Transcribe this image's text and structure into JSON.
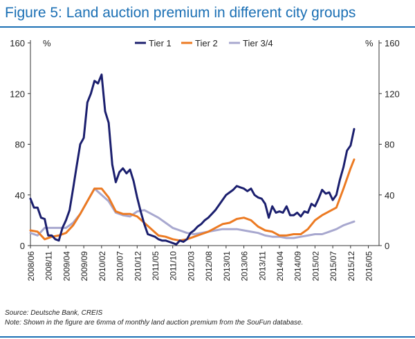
{
  "title": "Figure 5: Land auction premium in different city groups",
  "notes": {
    "source": "Source: Deutsche Bank, CREIS",
    "note": "Note: Shown in the figure are 6mma of monthly land auction premium from the SouFun database."
  },
  "colors": {
    "title": "#1a6fb4",
    "tier1": "#1b1f6e",
    "tier2": "#ec7a22",
    "tier3": "#a8a8cf"
  },
  "chart_data": {
    "type": "line",
    "title": "Figure 5: Land auction premium in different city groups",
    "start_month": "2008-06",
    "end_month": "2016-08",
    "ylim": [
      0,
      160
    ],
    "yticks": [
      0,
      40,
      80,
      120,
      160
    ],
    "left_unit": "%",
    "right_unit": "%",
    "grid": false,
    "legend_position": "top-center",
    "x_tick_labels": [
      "2008/06",
      "2008/11",
      "2009/04",
      "2009/09",
      "2010/02",
      "2010/07",
      "2010/12",
      "2011/05",
      "2011/10",
      "2012/03",
      "2012/08",
      "2013/01",
      "2013/06",
      "2013/11",
      "2014/04",
      "2014/09",
      "2015/02",
      "2015/07",
      "2015/12",
      "2016/05"
    ],
    "series": [
      {
        "name": "Tier 1",
        "color": "#1b1f6e",
        "points": [
          [
            0,
            37
          ],
          [
            1,
            30
          ],
          [
            2,
            30
          ],
          [
            3,
            22
          ],
          [
            4,
            21
          ],
          [
            5,
            8
          ],
          [
            6,
            8
          ],
          [
            7,
            5
          ],
          [
            8,
            4
          ],
          [
            9,
            14
          ],
          [
            10,
            20
          ],
          [
            11,
            28
          ],
          [
            12,
            45
          ],
          [
            13,
            63
          ],
          [
            14,
            80
          ],
          [
            15,
            85
          ],
          [
            16,
            113
          ],
          [
            17,
            120
          ],
          [
            18,
            130
          ],
          [
            19,
            128
          ],
          [
            20,
            135
          ],
          [
            21,
            106
          ],
          [
            22,
            97
          ],
          [
            23,
            64
          ],
          [
            24,
            50
          ],
          [
            25,
            58
          ],
          [
            26,
            61
          ],
          [
            27,
            57
          ],
          [
            28,
            60
          ],
          [
            29,
            51
          ],
          [
            30,
            38
          ],
          [
            31,
            27
          ],
          [
            32,
            17
          ],
          [
            33,
            9
          ],
          [
            34,
            8
          ],
          [
            35,
            7
          ],
          [
            36,
            5
          ],
          [
            37,
            4
          ],
          [
            38,
            4
          ],
          [
            39,
            3
          ],
          [
            40,
            2
          ],
          [
            41,
            1
          ],
          [
            42,
            4
          ],
          [
            43,
            3
          ],
          [
            44,
            5
          ],
          [
            45,
            10
          ],
          [
            46,
            12
          ],
          [
            47,
            15
          ],
          [
            48,
            17
          ],
          [
            49,
            20
          ],
          [
            50,
            22
          ],
          [
            51,
            25
          ],
          [
            52,
            28
          ],
          [
            53,
            32
          ],
          [
            54,
            36
          ],
          [
            55,
            40
          ],
          [
            56,
            42
          ],
          [
            57,
            44
          ],
          [
            58,
            47
          ],
          [
            59,
            46
          ],
          [
            60,
            45
          ],
          [
            61,
            43
          ],
          [
            62,
            45
          ],
          [
            63,
            40
          ],
          [
            64,
            38
          ],
          [
            65,
            37
          ],
          [
            66,
            33
          ],
          [
            67,
            22
          ],
          [
            68,
            31
          ],
          [
            69,
            26
          ],
          [
            70,
            27
          ],
          [
            71,
            26
          ],
          [
            72,
            31
          ],
          [
            73,
            24
          ],
          [
            74,
            24
          ],
          [
            75,
            26
          ],
          [
            76,
            23
          ],
          [
            77,
            27
          ],
          [
            78,
            26
          ],
          [
            79,
            33
          ],
          [
            80,
            31
          ],
          [
            81,
            37
          ],
          [
            82,
            44
          ],
          [
            83,
            41
          ],
          [
            84,
            42
          ],
          [
            85,
            36
          ],
          [
            86,
            40
          ],
          [
            87,
            52
          ],
          [
            88,
            62
          ],
          [
            89,
            75
          ],
          [
            90,
            79
          ],
          [
            91,
            92
          ]
        ]
      },
      {
        "name": "Tier 2",
        "color": "#ec7a22",
        "points": [
          [
            0,
            12
          ],
          [
            2,
            11
          ],
          [
            4,
            5
          ],
          [
            6,
            7
          ],
          [
            8,
            8
          ],
          [
            10,
            10
          ],
          [
            12,
            16
          ],
          [
            14,
            25
          ],
          [
            16,
            35
          ],
          [
            18,
            45
          ],
          [
            20,
            45
          ],
          [
            22,
            38
          ],
          [
            24,
            27
          ],
          [
            26,
            25
          ],
          [
            28,
            25
          ],
          [
            30,
            23
          ],
          [
            32,
            18
          ],
          [
            34,
            13
          ],
          [
            36,
            8
          ],
          [
            38,
            7
          ],
          [
            40,
            5
          ],
          [
            42,
            4
          ],
          [
            44,
            5
          ],
          [
            46,
            7
          ],
          [
            48,
            9
          ],
          [
            50,
            11
          ],
          [
            52,
            14
          ],
          [
            54,
            17
          ],
          [
            56,
            18
          ],
          [
            58,
            21
          ],
          [
            60,
            22
          ],
          [
            62,
            20
          ],
          [
            64,
            15
          ],
          [
            66,
            12
          ],
          [
            68,
            11
          ],
          [
            70,
            8
          ],
          [
            72,
            8
          ],
          [
            74,
            9
          ],
          [
            76,
            9
          ],
          [
            78,
            13
          ],
          [
            80,
            20
          ],
          [
            82,
            24
          ],
          [
            84,
            27
          ],
          [
            86,
            30
          ],
          [
            88,
            45
          ],
          [
            90,
            61
          ],
          [
            91,
            68
          ]
        ]
      },
      {
        "name": "Tier 3/4",
        "color": "#a8a8cf",
        "points": [
          [
            0,
            10
          ],
          [
            2,
            8
          ],
          [
            4,
            14
          ],
          [
            6,
            14
          ],
          [
            8,
            14
          ],
          [
            10,
            14
          ],
          [
            12,
            18
          ],
          [
            14,
            25
          ],
          [
            16,
            35
          ],
          [
            18,
            45
          ],
          [
            20,
            40
          ],
          [
            22,
            35
          ],
          [
            24,
            26
          ],
          [
            26,
            24
          ],
          [
            28,
            23
          ],
          [
            30,
            27
          ],
          [
            32,
            28
          ],
          [
            34,
            25
          ],
          [
            36,
            22
          ],
          [
            38,
            18
          ],
          [
            40,
            14
          ],
          [
            42,
            12
          ],
          [
            44,
            10
          ],
          [
            46,
            9
          ],
          [
            48,
            10
          ],
          [
            50,
            11
          ],
          [
            52,
            12
          ],
          [
            54,
            13
          ],
          [
            56,
            13
          ],
          [
            58,
            13
          ],
          [
            60,
            12
          ],
          [
            62,
            11
          ],
          [
            64,
            10
          ],
          [
            66,
            8
          ],
          [
            68,
            7
          ],
          [
            70,
            7
          ],
          [
            72,
            6
          ],
          [
            74,
            6
          ],
          [
            76,
            7
          ],
          [
            78,
            8
          ],
          [
            80,
            9
          ],
          [
            82,
            9
          ],
          [
            84,
            11
          ],
          [
            86,
            13
          ],
          [
            88,
            16
          ],
          [
            90,
            18
          ],
          [
            91,
            19
          ]
        ]
      }
    ]
  }
}
